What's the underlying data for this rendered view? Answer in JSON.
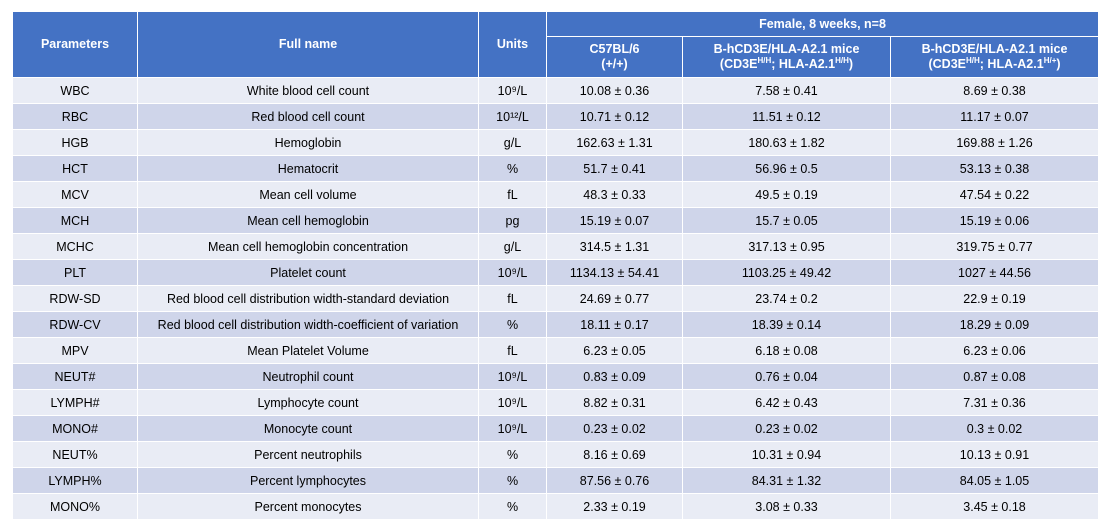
{
  "headers": {
    "parameters": "Parameters",
    "full_name": "Full name",
    "units": "Units",
    "group": "Female, 8 weeks, n=8",
    "col1_line1": "C57BL/6",
    "col1_line2": "(+/+)",
    "col2_line1": "B-hCD3E/HLA-A2.1 mice",
    "col2_line2_pre": "(CD3E",
    "col2_line2_sup1": "H/H",
    "col2_line2_mid": "; HLA-A2.1",
    "col2_line2_sup2": "H/H",
    "col2_line2_post": ")",
    "col3_line1": "B-hCD3E/HLA-A2.1 mice",
    "col3_line2_pre": "(CD3E",
    "col3_line2_sup1": "H/H",
    "col3_line2_mid": "; HLA-A2.1",
    "col3_line2_sup2": "H/+",
    "col3_line2_post": ")"
  },
  "rows": [
    {
      "param": "WBC",
      "name": "White blood cell count",
      "unit": "10⁹/L",
      "c57": "10.08 ± 0.36",
      "hom": "7.58 ± 0.41",
      "het": "8.69 ± 0.38"
    },
    {
      "param": "RBC",
      "name": "Red blood cell count",
      "unit": "10¹²/L",
      "c57": "10.71 ± 0.12",
      "hom": "11.51 ± 0.12",
      "het": "11.17 ± 0.07"
    },
    {
      "param": "HGB",
      "name": "Hemoglobin",
      "unit": "g/L",
      "c57": "162.63 ± 1.31",
      "hom": "180.63 ± 1.82",
      "het": "169.88 ± 1.26"
    },
    {
      "param": "HCT",
      "name": "Hematocrit",
      "unit": "%",
      "c57": "51.7 ± 0.41",
      "hom": "56.96 ± 0.5",
      "het": "53.13 ± 0.38"
    },
    {
      "param": "MCV",
      "name": "Mean cell volume",
      "unit": "fL",
      "c57": "48.3 ± 0.33",
      "hom": "49.5 ± 0.19",
      "het": "47.54 ± 0.22"
    },
    {
      "param": "MCH",
      "name": "Mean cell hemoglobin",
      "unit": "pg",
      "c57": "15.19 ± 0.07",
      "hom": "15.7 ± 0.05",
      "het": "15.19 ± 0.06"
    },
    {
      "param": "MCHC",
      "name": "Mean cell hemoglobin concentration",
      "unit": "g/L",
      "c57": "314.5 ± 1.31",
      "hom": "317.13 ± 0.95",
      "het": "319.75 ± 0.77"
    },
    {
      "param": "PLT",
      "name": "Platelet count",
      "unit": "10⁹/L",
      "c57": "1134.13 ± 54.41",
      "hom": "1103.25 ± 49.42",
      "het": "1027 ± 44.56"
    },
    {
      "param": "RDW-SD",
      "name": "Red blood cell distribution width-standard deviation",
      "unit": "fL",
      "c57": "24.69 ± 0.77",
      "hom": "23.74 ± 0.2",
      "het": "22.9 ± 0.19"
    },
    {
      "param": "RDW-CV",
      "name": "Red blood cell distribution width-coefficient of variation",
      "unit": "%",
      "c57": "18.11 ± 0.17",
      "hom": "18.39 ± 0.14",
      "het": "18.29 ± 0.09"
    },
    {
      "param": "MPV",
      "name": "Mean Platelet Volume",
      "unit": "fL",
      "c57": "6.23 ± 0.05",
      "hom": "6.18 ± 0.08",
      "het": "6.23 ± 0.06"
    },
    {
      "param": "NEUT#",
      "name": "Neutrophil count",
      "unit": "10⁹/L",
      "c57": "0.83 ± 0.09",
      "hom": "0.76 ± 0.04",
      "het": "0.87 ± 0.08"
    },
    {
      "param": "LYMPH#",
      "name": "Lymphocyte count",
      "unit": "10⁹/L",
      "c57": "8.82 ± 0.31",
      "hom": "6.42 ± 0.43",
      "het": "7.31 ± 0.36"
    },
    {
      "param": "MONO#",
      "name": "Monocyte count",
      "unit": "10⁹/L",
      "c57": "0.23 ± 0.02",
      "hom": "0.23 ± 0.02",
      "het": "0.3 ± 0.02"
    },
    {
      "param": "NEUT%",
      "name": "Percent neutrophils",
      "unit": "%",
      "c57": "8.16 ± 0.69",
      "hom": "10.31 ± 0.94",
      "het": "10.13 ± 0.91"
    },
    {
      "param": "LYMPH%",
      "name": "Percent lymphocytes",
      "unit": "%",
      "c57": "87.56 ± 0.76",
      "hom": "84.31 ± 1.32",
      "het": "84.05 ± 1.05"
    },
    {
      "param": "MONO%",
      "name": "Percent monocytes",
      "unit": "%",
      "c57": "2.33 ± 0.19",
      "hom": "3.08 ± 0.33",
      "het": "3.45 ± 0.18"
    }
  ]
}
